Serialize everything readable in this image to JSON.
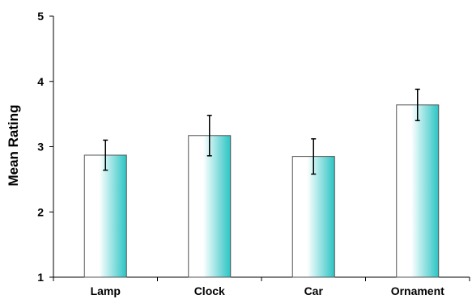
{
  "chart_data": {
    "type": "bar",
    "title": "",
    "xlabel": "",
    "ylabel": "Mean Rating",
    "categories": [
      "Lamp",
      "Clock",
      "Car",
      "Ornament"
    ],
    "values": [
      2.87,
      3.17,
      2.85,
      3.64
    ],
    "error": [
      0.23,
      0.31,
      0.27,
      0.24
    ],
    "ylim": [
      1,
      5
    ],
    "yticks": [
      "1",
      "2",
      "3",
      "4",
      "5"
    ],
    "grid": false,
    "legend": "none",
    "colors": {
      "bar_light": "#ffffff",
      "bar_dark": "#2bc4c4",
      "bar_border": "#555555",
      "axis": "#000000"
    }
  }
}
